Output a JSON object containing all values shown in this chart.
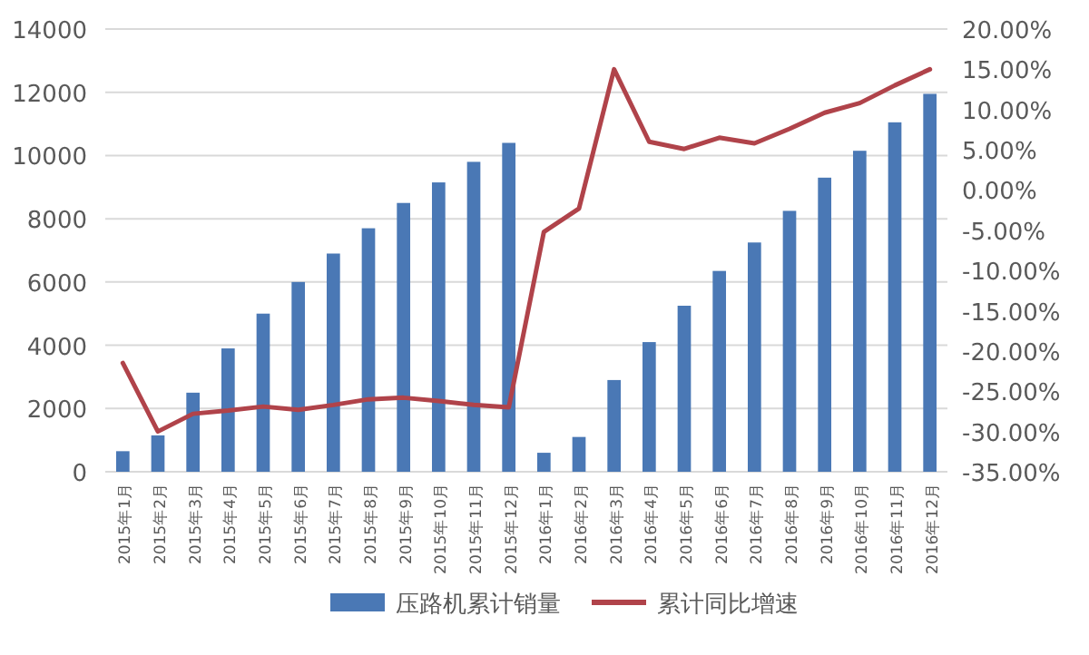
{
  "chart_data": {
    "type": "bar",
    "categories": [
      "2015年1月",
      "2015年2月",
      "2015年3月",
      "2015年4月",
      "2015年5月",
      "2015年6月",
      "2015年7月",
      "2015年8月",
      "2015年9月",
      "2015年10月",
      "2015年11月",
      "2015年12月",
      "2016年1月",
      "2016年2月",
      "2016年3月",
      "2016年4月",
      "2016年5月",
      "2016年6月",
      "2016年7月",
      "2016年8月",
      "2016年9月",
      "2016年10月",
      "2016年11月",
      "2016年12月"
    ],
    "series": [
      {
        "name": "压路机累计销量",
        "color": "#4a78b5",
        "values": [
          650,
          1150,
          2500,
          3900,
          5000,
          6000,
          6900,
          7700,
          8500,
          9150,
          9800,
          10400,
          600,
          1100,
          2900,
          4100,
          5250,
          6350,
          7250,
          8250,
          9300,
          10150,
          11050,
          11950
        ]
      },
      {
        "name": "累计同比增速",
        "type": "line",
        "axis": "y2",
        "color": "#b0434a",
        "values": [
          -21.5,
          -30.0,
          -27.8,
          -27.4,
          -26.9,
          -27.3,
          -26.7,
          -26.0,
          -25.8,
          -26.2,
          -26.7,
          -27.0,
          -5.2,
          -2.3,
          15.0,
          6.0,
          5.1,
          6.5,
          5.8,
          7.6,
          9.6,
          10.8,
          13.0,
          15.0
        ]
      }
    ],
    "ylim": [
      0,
      14000
    ],
    "yticks": [
      0,
      2000,
      4000,
      6000,
      8000,
      10000,
      12000,
      14000
    ],
    "y2lim": [
      -35,
      20
    ],
    "y2ticks": [
      {
        "value": -35,
        "label": "-35.00%"
      },
      {
        "value": -30,
        "label": "-30.00%"
      },
      {
        "value": -25,
        "label": "-25.00%"
      },
      {
        "value": -20,
        "label": "-20.00%"
      },
      {
        "value": -15,
        "label": "-15.00%"
      },
      {
        "value": -10,
        "label": "-10.00%"
      },
      {
        "value": -5,
        "label": "-5.00%"
      },
      {
        "value": 0,
        "label": "0.00%"
      },
      {
        "value": 5,
        "label": "5.00%"
      },
      {
        "value": 10,
        "label": "10.00%"
      },
      {
        "value": 15,
        "label": "15.00%"
      },
      {
        "value": 20,
        "label": "20.00%"
      }
    ],
    "grid": "y",
    "legend": "bottom",
    "marker": "none",
    "line_style": "solid"
  }
}
